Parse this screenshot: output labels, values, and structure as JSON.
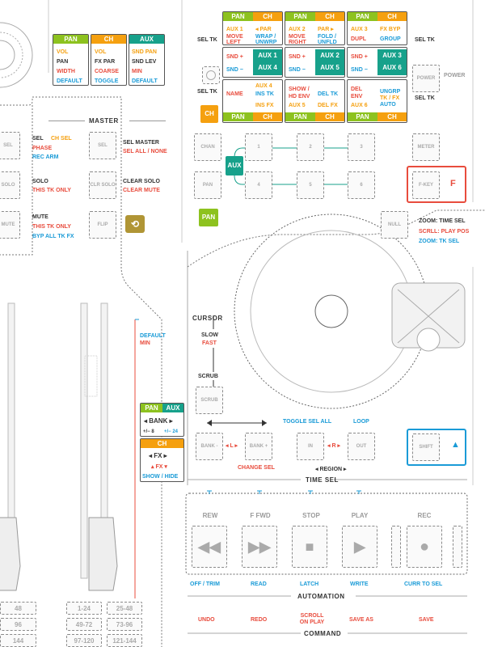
{
  "legend": {
    "headers": [
      "PAN",
      "CH",
      "AUX"
    ],
    "pan": [
      "VOL",
      "PAN",
      "WIDTH",
      "DEFAULT"
    ],
    "ch": [
      "VOL",
      "FX PAR",
      "COARSE",
      "TOGGLE"
    ],
    "aux": [
      "SND PAN",
      "SND LEV",
      "MIN",
      "DEFAULT"
    ]
  },
  "master": {
    "title": "MASTER",
    "sel": [
      "SEL",
      "CH SEL",
      "PHASE",
      "REC ARM"
    ],
    "sel_master": [
      "SEL MASTER",
      "SEL ALL / NONE"
    ],
    "solo": [
      "SOLO",
      "THIS TK ONLY"
    ],
    "clear_solo": [
      "CLEAR SOLO",
      "CLEAR MUTE"
    ],
    "mute": [
      "MUTE",
      "THIS TK ONLY",
      "BYP ALL TK FX"
    ],
    "buttons": {
      "sel_left": "SEL",
      "sel": "SEL",
      "solo_left": "SOLO",
      "clr_solo": "CLR SOLO",
      "mute_left": "MUTE",
      "flip": "FLIP"
    }
  },
  "grid": {
    "headers": [
      "PAN",
      "CH",
      "PAN",
      "CH",
      "PAN",
      "CH"
    ],
    "row1": [
      [
        "AUX 1",
        "◂ PAR",
        "MOVE",
        "WRAP /",
        "LEFT",
        "UNWRP"
      ],
      [
        "AUX 2",
        "PAR ▸",
        "MOVE",
        "FOLD /",
        "RIGHT",
        "UNFLD"
      ],
      [
        "AUX 3",
        "FX BYP",
        "DUPL",
        "GROUP"
      ]
    ],
    "aux_row": [
      "AUX 1",
      "AUX 4",
      "AUX 2",
      "AUX 5",
      "AUX 3",
      "AUX 6"
    ],
    "snd": [
      "SND +",
      "SND −"
    ],
    "row3": [
      [
        "AUX 4",
        "INS TK",
        "NAME",
        "INS FX"
      ],
      [
        "SHOW /",
        "DEL TK",
        "HD ENV",
        "AUX 5",
        "DEL FX"
      ],
      [
        "DEL",
        "UNGRP",
        "ENV",
        "TK / FX",
        "AUX 6",
        "AUTO"
      ]
    ],
    "footer": [
      "PAN",
      "CH",
      "PAN",
      "CH",
      "PAN",
      "CH"
    ],
    "sel_tk": "SEL TK"
  },
  "channel": {
    "ch": "CH",
    "chan": "CHAN",
    "pan_btn": "PAN",
    "aux": "AUX",
    "pan": "PAN",
    "nums": [
      "1",
      "2",
      "3",
      "4",
      "5",
      "6"
    ]
  },
  "right": {
    "power": "POWER",
    "meter": "METER",
    "fkey": "F-KEY",
    "f": "F",
    "null": "NULL",
    "zoom": [
      "ZOOM: TIME SEL",
      "SCRLL: PLAY POS",
      "ZOOM: TK SEL"
    ],
    "shift": "SHIFT"
  },
  "cursor": {
    "title": "CURSOR",
    "slow": "SLOW",
    "fast": "FAST",
    "scrub": "SCRUB",
    "scrub_btn": "SCRUB"
  },
  "fader": {
    "default": "DEFAULT",
    "min": "MIN"
  },
  "bank": {
    "pan": "PAN",
    "aux": "AUX",
    "bank": "◂ BANK ▸",
    "pm8": "+/− 8",
    "pm24": "+/− 24",
    "ch": "CH",
    "fx": "◂ FX ▸",
    "fx_red": "▴ FX ▾",
    "show": "SHOW / HIDE",
    "bank1": "BANK -",
    "bank2": "BANK +",
    "l": "◂ L ▸",
    "change_sel": "CHANGE SEL"
  },
  "transport": {
    "toggle": "TOGGLE SEL ALL",
    "loop": "LOOP",
    "in": "IN",
    "out": "OUT",
    "r": "◂ R ▸",
    "region": "◂ REGION ▸",
    "time_sel": "TIME SEL",
    "labels": [
      "REW",
      "F FWD",
      "STOP",
      "PLAY",
      "REC"
    ],
    "below": [
      "OFF / TRIM",
      "READ",
      "LATCH",
      "WRITE",
      "CURR TO SEL"
    ],
    "automation": "AUTOMATION",
    "command_items": [
      "UNDO",
      "REDO",
      "SCROLL ON PLAY",
      "SAVE AS",
      "SAVE"
    ],
    "command": "COMMAND"
  },
  "banks_left": [
    "48",
    "96",
    "144",
    "1-24",
    "25-48",
    "49-72",
    "73-96",
    "97-120",
    "121-144"
  ],
  "colors": {
    "pan": "#8dc21f",
    "ch": "#f5a00f",
    "aux": "#17a18b",
    "red": "#e84c3d",
    "blue": "#1a9bd7"
  }
}
